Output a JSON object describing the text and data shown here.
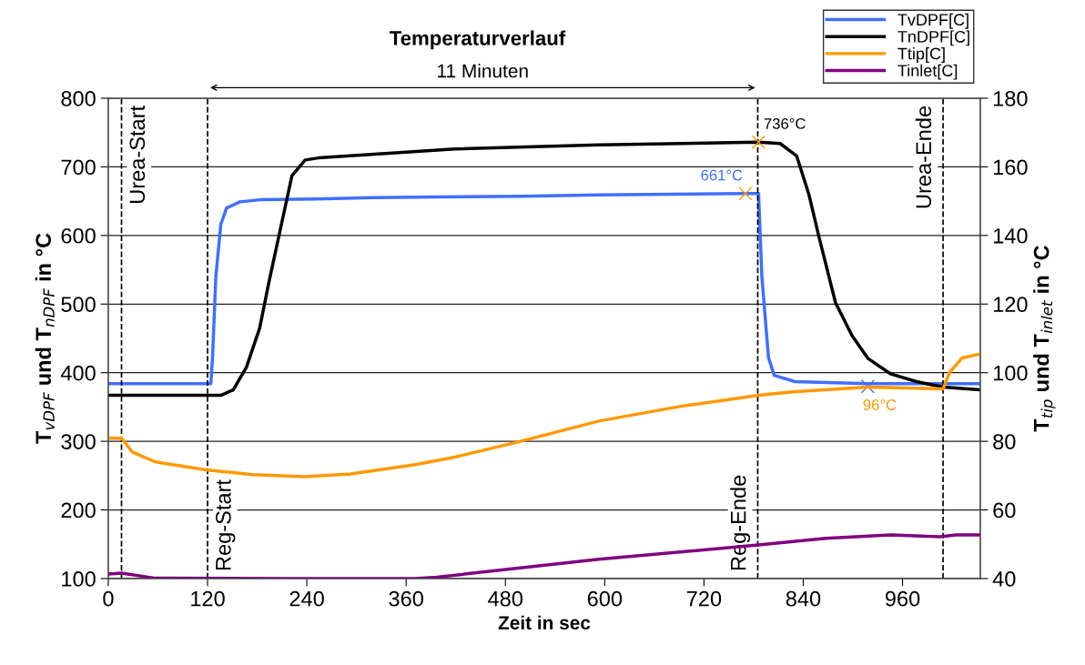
{
  "chart_data": {
    "type": "line",
    "title": "Temperaturverlauf",
    "xlabel": "Zeit in sec",
    "ylabel": "T$_{vDPF}$ und T$_{nDPF}$ in °C",
    "y2label": "T$_{tip}$ und T$_{inlet}$ in °C",
    "xlim": [
      0,
      1054
    ],
    "xticks": [
      0,
      120,
      240,
      360,
      480,
      600,
      720,
      840,
      960
    ],
    "ylim": [
      100,
      800
    ],
    "yticks": [
      100,
      200,
      300,
      400,
      500,
      600,
      700,
      800
    ],
    "y2lim": [
      40,
      180
    ],
    "y2ticks": [
      40,
      60,
      80,
      100,
      120,
      140,
      160,
      180
    ],
    "grid": "y",
    "legend": "top right",
    "line_style": "solid",
    "marker": "none",
    "series": [
      {
        "name": "TvDPF[C]",
        "color": "#3f6fff",
        "x": [
          0,
          60,
          120,
          124,
          126,
          130,
          136,
          143,
          159,
          183,
          250,
          320,
          397,
          500,
          593,
          680,
          770,
          786,
          790,
          798,
          805,
          830,
          918,
          1000,
          1054
        ],
        "values": [
          384,
          384,
          384,
          384,
          422,
          540,
          616,
          640,
          649,
          652,
          653,
          655,
          656,
          657,
          659,
          660,
          661,
          661,
          540,
          422,
          396,
          387,
          384,
          384,
          384
        ]
      },
      {
        "name": "TnDPF[C]",
        "color": "#000000",
        "x": [
          0,
          120,
          136,
          151,
          167,
          183,
          194,
          206,
          222,
          238,
          254,
          419,
          593,
          786,
          812,
          832,
          847,
          859,
          879,
          899,
          918,
          946,
          977,
          1009,
          1054
        ],
        "values": [
          367,
          367,
          367,
          375,
          408,
          465,
          531,
          598,
          687,
          710,
          713,
          726,
          732,
          736,
          734,
          716,
          659,
          598,
          502,
          454,
          421,
          398,
          387,
          379,
          375
        ]
      },
      {
        "name": "Ttip[C]",
        "color": "#ff9900",
        "axis": "y2",
        "x": [
          0,
          16,
          29,
          57,
          120,
          175,
          238,
          293,
          371,
          419,
          495,
          593,
          692,
          786,
          827,
          918,
          1009,
          1017,
          1032,
          1054
        ],
        "values": [
          80.9,
          80.9,
          76.9,
          74,
          71.6,
          70.3,
          69.7,
          70.5,
          73.2,
          75.4,
          79.8,
          85.9,
          90.2,
          93.4,
          94.4,
          95.8,
          95.3,
          100.1,
          104.3,
          105.5
        ]
      },
      {
        "name": "Tinlet[C]",
        "color": "#800080",
        "axis": "y2",
        "x": [
          0,
          16,
          57,
          214,
          371,
          397,
          593,
          786,
          867,
          946,
          1005,
          1025,
          1054
        ],
        "values": [
          41.3,
          41.6,
          40.1,
          40,
          40,
          40.4,
          45.6,
          49.8,
          51.7,
          52.7,
          52.2,
          52.7,
          52.7
        ]
      }
    ],
    "ref_lines": [
      {
        "axis": "x",
        "value": 16,
        "label": "Urea-Start",
        "color": "#000000",
        "line_style": "dashed"
      },
      {
        "axis": "x",
        "value": 120,
        "label": "Reg-Start",
        "color": "#000000",
        "line_style": "dashed"
      },
      {
        "axis": "x",
        "value": 785,
        "label": "Reg-Ende",
        "color": "#000000",
        "line_style": "dashed"
      },
      {
        "axis": "x",
        "value": 1009,
        "label": "Urea-Ende",
        "color": "#000000",
        "line_style": "dashed"
      }
    ],
    "annotations": [
      {
        "text": "661°C",
        "x": 770,
        "y": 661
      },
      {
        "text": "736°C",
        "x": 786,
        "y": 736
      },
      {
        "text": "96°C",
        "x": 918,
        "y": 380
      },
      "11 Minuten"
    ]
  }
}
